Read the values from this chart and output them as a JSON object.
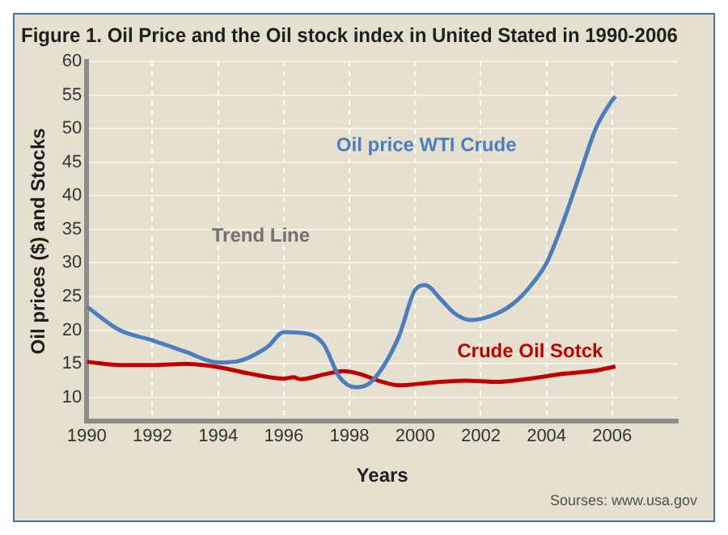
{
  "chart_data": {
    "type": "line",
    "title": "Figure 1. Oil Price and the Oil stock index in United Stated in 1990-2006",
    "xlabel": "Years",
    "ylabel": "Oil prices ($) and Stocks",
    "annotations": [
      "Trend Line",
      "Sourses: www.usa.gov"
    ],
    "xlim": [
      1990,
      2008
    ],
    "xticks": [
      1990,
      1992,
      1994,
      1996,
      1998,
      2000,
      2002,
      2004,
      2006
    ],
    "ylim": [
      6.5,
      60
    ],
    "yticks": [
      10,
      15,
      20,
      25,
      30,
      35,
      40,
      45,
      50,
      55,
      60
    ],
    "grid": true,
    "series": [
      {
        "name": "Oil price WTI Crude",
        "color": "#4a7ebf",
        "x": [
          1990,
          1991,
          1992,
          1993,
          1994,
          1994.5,
          1995.5,
          1996,
          1996.7,
          1997.2,
          1997.7,
          1998.2,
          1998.7,
          1999.5,
          2000,
          2000.3,
          2000.8,
          2001.2,
          2001.7,
          2002.5,
          2003,
          2003.5,
          2004,
          2004.5,
          2005,
          2005.5,
          2006,
          2006.1
        ],
        "values": [
          23.5,
          20,
          18.5,
          16.8,
          15.2,
          15.3,
          17.5,
          19.7,
          19.5,
          18,
          13,
          11.5,
          12.5,
          19,
          26,
          26.7,
          24.5,
          22.5,
          21.5,
          22.5,
          24,
          26.5,
          30,
          36,
          43,
          50,
          54.2,
          54.8
        ]
      },
      {
        "name": "Crude Oil Sotck",
        "color": "#c00000",
        "x": [
          1990,
          1991,
          1992,
          1993,
          1994,
          1995,
          1996,
          1996.3,
          1996.5,
          1997.3,
          1997.8,
          1998.3,
          1999,
          1999.5,
          2000.5,
          2001.5,
          2002.5,
          2003.5,
          2004.5,
          2005.5,
          2006.1
        ],
        "values": [
          15.3,
          14.8,
          14.8,
          15,
          14.5,
          13.5,
          12.8,
          13,
          12.7,
          13.5,
          13.9,
          13.5,
          12.3,
          11.8,
          12.2,
          12.5,
          12.3,
          12.8,
          13.5,
          14,
          14.6
        ]
      }
    ]
  }
}
